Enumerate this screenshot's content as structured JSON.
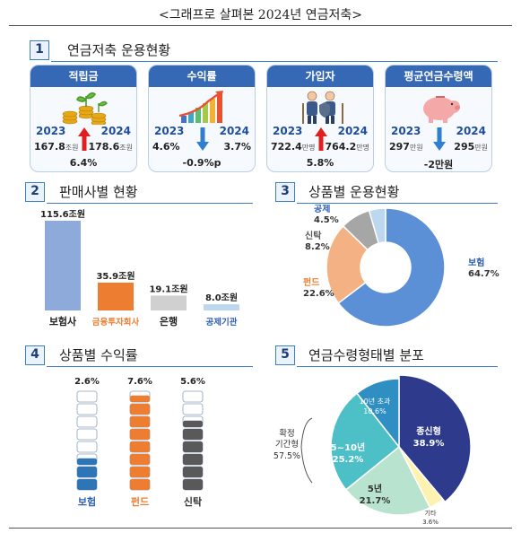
{
  "page_title": "<그래프로 살펴본 2024년 연금저축>",
  "sections": {
    "s1": {
      "num": "1",
      "title": "연금저축 운용현황"
    },
    "s2": {
      "num": "2",
      "title": "판매사별 현황"
    },
    "s3": {
      "num": "3",
      "title": "상품별 운용현황"
    },
    "s4": {
      "num": "4",
      "title": "상품별 수익률"
    },
    "s5": {
      "num": "5",
      "title": "연금수령형태별 분포"
    }
  },
  "cards": [
    {
      "title": "적립금",
      "year_a": "2023",
      "year_b": "2024",
      "value_a": "167.8",
      "unit_a": "조원",
      "value_b": "178.6",
      "unit_b": "조원",
      "change": "6.4%",
      "direction": "up",
      "icon": "coin-sprout-icon"
    },
    {
      "title": "수익률",
      "year_a": "2023",
      "year_b": "2024",
      "value_a": "4.6%",
      "unit_a": "",
      "value_b": "3.7%",
      "unit_b": "",
      "change": "-0.9%p",
      "direction": "down",
      "icon": "growth-chart-icon"
    },
    {
      "title": "가입자",
      "year_a": "2023",
      "year_b": "2024",
      "value_a": "722.4",
      "unit_a": "만명",
      "value_b": "764.2",
      "unit_b": "만명",
      "change": "5.8%",
      "direction": "up",
      "icon": "senior-people-icon"
    },
    {
      "title": "평균연금수령액",
      "year_a": "2023",
      "year_b": "2024",
      "value_a": "297",
      "unit_a": "만원",
      "value_b": "295",
      "unit_b": "만원",
      "change": "-2만원",
      "direction": "down",
      "icon": "piggy-bank-icon"
    }
  ],
  "colors": {
    "up": "#e02020",
    "down": "#2f7fd0",
    "blue": "#3569b5"
  },
  "chart_data": [
    {
      "type": "bar",
      "categories": [
        "보험사",
        "금융투자회사",
        "은행",
        "공제기관"
      ],
      "values": [
        115.6,
        35.9,
        19.1,
        8.0
      ],
      "value_labels": [
        "115.6조원",
        "35.9조원",
        "19.1조원",
        "8.0조원"
      ],
      "colors": [
        "#8eaadb",
        "#ed7d31",
        "#d0d0d0",
        "#bdd7ee"
      ],
      "label_colors": [
        "#222222",
        "#ed7d31",
        "#222222",
        "#2f5fb0"
      ]
    },
    {
      "type": "pie",
      "donut": true,
      "labels": [
        "보험",
        "펀드",
        "신탁",
        "공제"
      ],
      "values": [
        64.7,
        22.6,
        8.2,
        4.5
      ],
      "value_labels": [
        "64.7%",
        "22.6%",
        "8.2%",
        "4.5%"
      ],
      "colors": [
        "#5b8fd6",
        "#f4b183",
        "#a6a6a6",
        "#bdd7ee"
      ],
      "label_colors": [
        "#2f5fb0",
        "#ed7d31",
        "#555555",
        "#2f5fb0"
      ]
    },
    {
      "type": "bar",
      "categories": [
        "보험",
        "펀드",
        "신탁"
      ],
      "values": [
        2.6,
        7.6,
        5.6
      ],
      "value_labels": [
        "2.6%",
        "7.6%",
        "5.6%"
      ],
      "colors": [
        "#2e75b6",
        "#ed7d31",
        "#595959"
      ],
      "label_colors": [
        "#2f5fb0",
        "#ed7d31",
        "#333333"
      ],
      "scale_max": 8
    },
    {
      "type": "pie",
      "labels": [
        "종신형",
        "기타",
        "5년",
        "5~10년",
        "10년 초과"
      ],
      "values": [
        38.9,
        3.6,
        21.7,
        25.2,
        10.6
      ],
      "value_labels": [
        "38.9%",
        "3.6%",
        "21.7%",
        "25.2%",
        "10.6%"
      ],
      "colors": [
        "#2e3a8c",
        "#fff2b0",
        "#b8e3cf",
        "#4dbfc7",
        "#2f8fc2"
      ],
      "group_label": "확정 기간형",
      "group_value": "57.5%"
    }
  ]
}
